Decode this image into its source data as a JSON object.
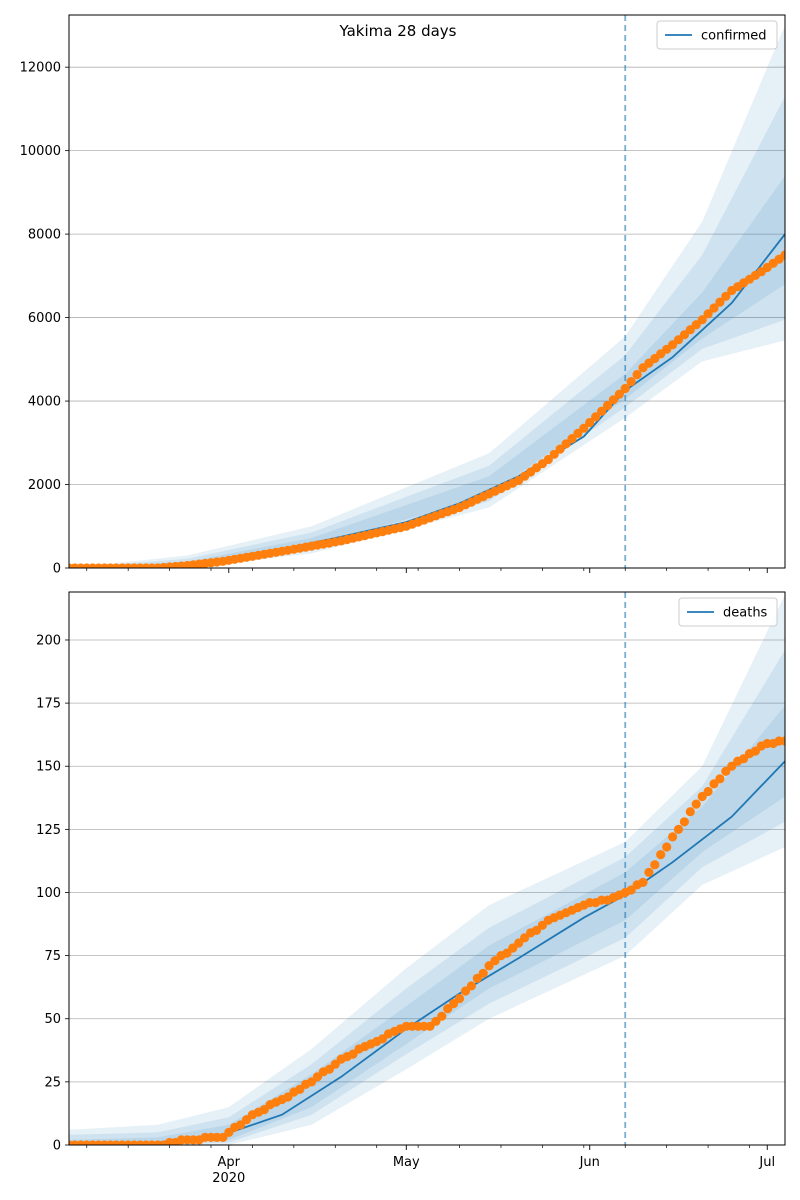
{
  "figure": {
    "title": "Yakima 28 days"
  },
  "colors": {
    "line": "#1f77b4",
    "observed": "#ff7f0e",
    "band": "#1f77b4",
    "grid": "#b0b0b0",
    "axis": "#000000"
  },
  "chart_data": [
    {
      "type": "line",
      "title": "Yakima 28 days",
      "xlabel": "",
      "ylabel": "",
      "x_start": "2020-03-05",
      "x_end": "2020-07-04",
      "forecast_start": "2020-06-07",
      "ylim": [
        0,
        13250
      ],
      "yticks": [
        0,
        2000,
        4000,
        6000,
        8000,
        10000,
        12000
      ],
      "grid": "horizontal",
      "legend": {
        "position": "top-right",
        "entries": [
          "confirmed"
        ]
      },
      "series": [
        {
          "name": "confirmed",
          "role": "model",
          "x": [
            "2020-03-05",
            "2020-03-20",
            "2020-03-25",
            "2020-03-31",
            "2020-04-10",
            "2020-04-20",
            "2020-05-01",
            "2020-05-10",
            "2020-05-20",
            "2020-05-31",
            "2020-06-07",
            "2020-06-15",
            "2020-06-25",
            "2020-07-04"
          ],
          "y": [
            0,
            0,
            50,
            200,
            450,
            750,
            1100,
            1550,
            2200,
            3150,
            4250,
            5050,
            6350,
            8000
          ]
        },
        {
          "role": "observed",
          "x": [
            "2020-03-05",
            "2020-03-20",
            "2020-03-25",
            "2020-03-31",
            "2020-04-10",
            "2020-04-20",
            "2020-05-01",
            "2020-05-10",
            "2020-05-20",
            "2020-05-25",
            "2020-05-31",
            "2020-06-07",
            "2020-06-10",
            "2020-06-15",
            "2020-06-20",
            "2020-06-25",
            "2020-06-30",
            "2020-07-04"
          ],
          "y": [
            0,
            0,
            60,
            160,
            400,
            650,
            1000,
            1450,
            2100,
            2600,
            3350,
            4300,
            4800,
            5350,
            5950,
            6650,
            7100,
            7500
          ]
        }
      ],
      "bands": [
        {
          "x": [
            "2020-03-05",
            "2020-03-25",
            "2020-04-15",
            "2020-05-15",
            "2020-06-07",
            "2020-06-20",
            "2020-07-04"
          ],
          "lower": [
            0,
            0,
            350,
            1450,
            3600,
            4950,
            5450
          ],
          "upper": [
            0,
            300,
            1000,
            2750,
            5550,
            8300,
            13000
          ]
        },
        {
          "x": [
            "2020-03-05",
            "2020-03-25",
            "2020-04-15",
            "2020-05-15",
            "2020-06-07",
            "2020-06-20",
            "2020-07-04"
          ],
          "lower": [
            0,
            0,
            430,
            1600,
            3850,
            5250,
            5950
          ],
          "upper": [
            0,
            220,
            850,
            2450,
            5100,
            7500,
            11300
          ]
        },
        {
          "x": [
            "2020-03-05",
            "2020-03-25",
            "2020-04-15",
            "2020-05-15",
            "2020-06-07",
            "2020-06-20",
            "2020-07-04"
          ],
          "lower": [
            0,
            20,
            500,
            1750,
            4050,
            5500,
            6800
          ],
          "upper": [
            0,
            150,
            720,
            2200,
            4650,
            6600,
            9400
          ]
        }
      ]
    },
    {
      "type": "line",
      "xlabel": "",
      "ylabel": "",
      "x_start": "2020-03-05",
      "x_end": "2020-07-04",
      "forecast_start": "2020-06-07",
      "ylim": [
        0,
        219
      ],
      "yticks": [
        0,
        25,
        50,
        75,
        100,
        125,
        150,
        175,
        200
      ],
      "grid": "horizontal",
      "legend": {
        "position": "top-right",
        "entries": [
          "deaths"
        ]
      },
      "xticks": [
        {
          "date": "2020-04-01",
          "label": "Apr",
          "sublabel": "2020"
        },
        {
          "date": "2020-05-01",
          "label": "May",
          "sublabel": ""
        },
        {
          "date": "2020-06-01",
          "label": "Jun",
          "sublabel": ""
        },
        {
          "date": "2020-07-01",
          "label": "Jul",
          "sublabel": ""
        }
      ],
      "series": [
        {
          "name": "deaths",
          "role": "model",
          "x": [
            "2020-03-05",
            "2020-03-20",
            "2020-03-31",
            "2020-04-10",
            "2020-04-20",
            "2020-05-01",
            "2020-05-10",
            "2020-05-20",
            "2020-05-31",
            "2020-06-07",
            "2020-06-15",
            "2020-06-25",
            "2020-07-04"
          ],
          "y": [
            0,
            1,
            4,
            12,
            27,
            46,
            60,
            74,
            90,
            99,
            112,
            130,
            152
          ]
        },
        {
          "role": "observed",
          "x": [
            "2020-03-05",
            "2020-03-20",
            "2020-03-25",
            "2020-03-31",
            "2020-04-05",
            "2020-04-10",
            "2020-04-15",
            "2020-04-20",
            "2020-04-25",
            "2020-05-01",
            "2020-05-05",
            "2020-05-10",
            "2020-05-15",
            "2020-05-20",
            "2020-05-25",
            "2020-05-31",
            "2020-06-05",
            "2020-06-07",
            "2020-06-10",
            "2020-06-15",
            "2020-06-20",
            "2020-06-25",
            "2020-06-30",
            "2020-07-04"
          ],
          "y": [
            0,
            0,
            2,
            3,
            12,
            18,
            25,
            34,
            40,
            47,
            47,
            58,
            71,
            80,
            89,
            95,
            98,
            100,
            104,
            122,
            138,
            150,
            158,
            160
          ]
        }
      ],
      "bands": [
        {
          "x": [
            "2020-03-05",
            "2020-03-20",
            "2020-04-01",
            "2020-04-15",
            "2020-05-01",
            "2020-05-15",
            "2020-06-07",
            "2020-06-20",
            "2020-07-04"
          ],
          "lower": [
            0,
            0,
            0,
            8,
            30,
            50,
            75,
            103,
            118
          ],
          "upper": [
            6,
            8,
            15,
            38,
            70,
            95,
            120,
            150,
            218
          ]
        },
        {
          "x": [
            "2020-03-05",
            "2020-03-20",
            "2020-04-01",
            "2020-04-15",
            "2020-05-01",
            "2020-05-15",
            "2020-06-07",
            "2020-06-20",
            "2020-07-04"
          ],
          "lower": [
            0,
            0,
            1,
            12,
            36,
            56,
            82,
            110,
            128
          ],
          "upper": [
            4,
            5,
            11,
            32,
            62,
            86,
            114,
            142,
            196
          ]
        },
        {
          "x": [
            "2020-03-05",
            "2020-03-20",
            "2020-04-01",
            "2020-04-15",
            "2020-05-01",
            "2020-05-15",
            "2020-06-07",
            "2020-06-20",
            "2020-07-04"
          ],
          "lower": [
            0,
            0,
            2,
            15,
            40,
            62,
            89,
            116,
            138
          ],
          "upper": [
            2,
            3,
            8,
            28,
            55,
            79,
            108,
            134,
            174
          ]
        }
      ]
    }
  ]
}
